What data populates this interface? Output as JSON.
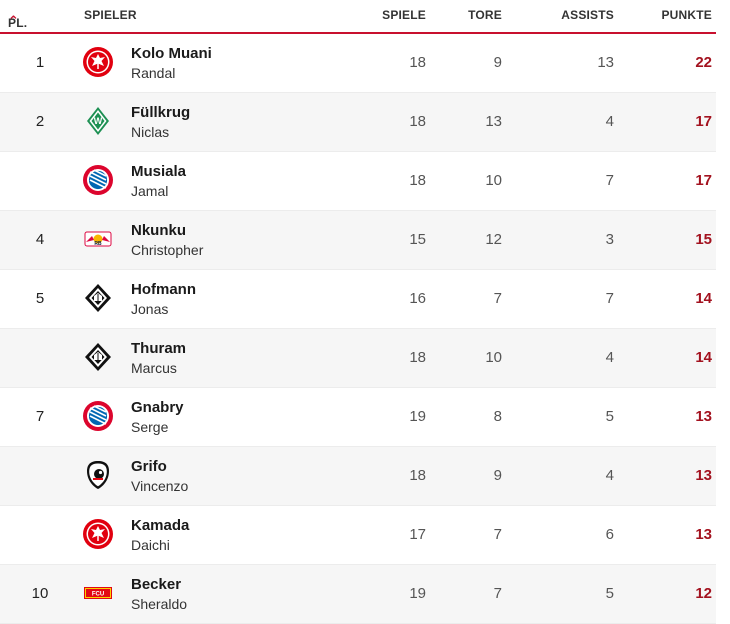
{
  "header": {
    "pl": "PL.",
    "spieler": "SPIELER",
    "spiele": "SPIELE",
    "tore": "TORE",
    "assists": "ASSISTS",
    "punkte": "PUNKTE"
  },
  "colors": {
    "accent": "#c8102e",
    "points": "#a3121f"
  },
  "rows": [
    {
      "pos": "1",
      "last": "Kolo Muani",
      "first": "Randal",
      "club_logo": "eintracht-frankfurt-logo",
      "spiele": "18",
      "tore": "9",
      "assists": "13",
      "punkte": "22"
    },
    {
      "pos": "2",
      "last": "Füllkrug",
      "first": "Niclas",
      "club_logo": "werder-bremen-logo",
      "spiele": "18",
      "tore": "13",
      "assists": "4",
      "punkte": "17"
    },
    {
      "pos": "",
      "last": "Musiala",
      "first": "Jamal",
      "club_logo": "bayern-muenchen-logo",
      "spiele": "18",
      "tore": "10",
      "assists": "7",
      "punkte": "17"
    },
    {
      "pos": "4",
      "last": "Nkunku",
      "first": "Christopher",
      "club_logo": "rb-leipzig-logo",
      "spiele": "15",
      "tore": "12",
      "assists": "3",
      "punkte": "15"
    },
    {
      "pos": "5",
      "last": "Hofmann",
      "first": "Jonas",
      "club_logo": "gladbach-logo",
      "spiele": "16",
      "tore": "7",
      "assists": "7",
      "punkte": "14"
    },
    {
      "pos": "",
      "last": "Thuram",
      "first": "Marcus",
      "club_logo": "gladbach-logo",
      "spiele": "18",
      "tore": "10",
      "assists": "4",
      "punkte": "14"
    },
    {
      "pos": "7",
      "last": "Gnabry",
      "first": "Serge",
      "club_logo": "bayern-muenchen-logo",
      "spiele": "19",
      "tore": "8",
      "assists": "5",
      "punkte": "13"
    },
    {
      "pos": "",
      "last": "Grifo",
      "first": "Vincenzo",
      "club_logo": "sc-freiburg-logo",
      "spiele": "18",
      "tore": "9",
      "assists": "4",
      "punkte": "13"
    },
    {
      "pos": "",
      "last": "Kamada",
      "first": "Daichi",
      "club_logo": "eintracht-frankfurt-logo",
      "spiele": "17",
      "tore": "7",
      "assists": "6",
      "punkte": "13"
    },
    {
      "pos": "10",
      "last": "Becker",
      "first": "Sheraldo",
      "club_logo": "union-berlin-logo",
      "spiele": "19",
      "tore": "7",
      "assists": "5",
      "punkte": "12"
    }
  ]
}
